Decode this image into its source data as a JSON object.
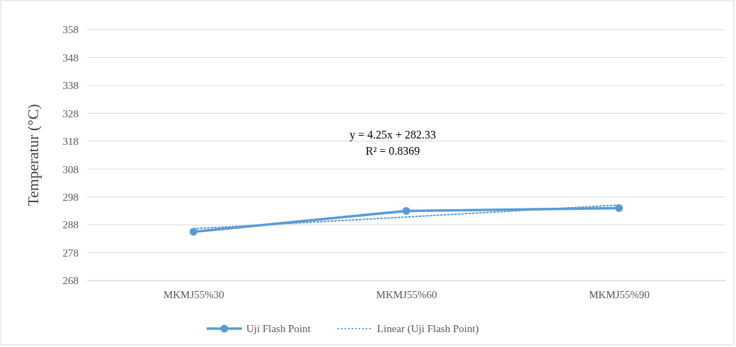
{
  "chart_data": {
    "type": "line",
    "ylabel": "Temperatur (°C)",
    "categories": [
      "MKMJ55%30",
      "MKMJ55%60",
      "MKMJ55%90"
    ],
    "series": [
      {
        "name": "Uji Flash Point",
        "color": "#5b9bd5",
        "values": [
          285.5,
          293,
          294
        ],
        "marker": "circle",
        "line_style": "solid"
      },
      {
        "name": "Linear (Uji Flash Point)",
        "color": "#5b9bd5",
        "values": [
          286.6,
          290.8,
          295.1
        ],
        "marker": "none",
        "line_style": "dotted"
      }
    ],
    "ylim": [
      268,
      358
    ],
    "yticks": [
      268,
      278,
      288,
      298,
      308,
      318,
      328,
      338,
      348,
      358
    ],
    "grid": "y",
    "legend": "bottom",
    "annotations": [
      "y = 4.25x + 282.33",
      "R² = 0.8369"
    ]
  }
}
